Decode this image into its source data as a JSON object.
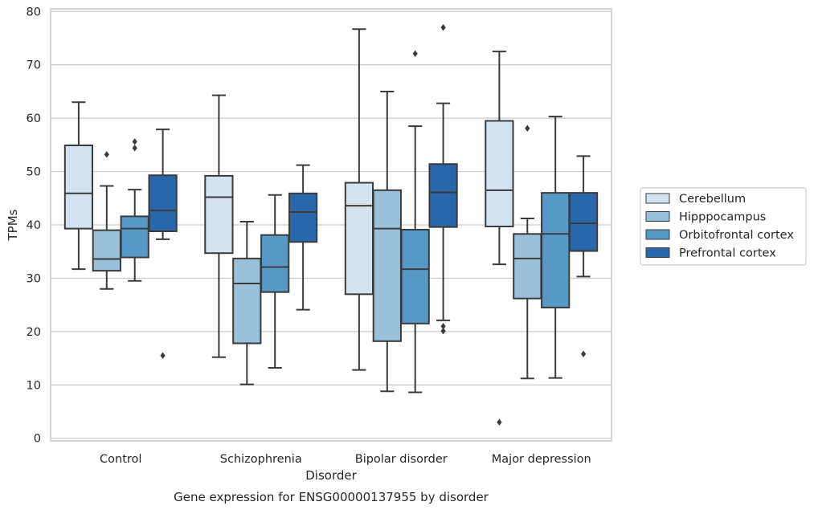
{
  "chart_data": {
    "type": "boxplot",
    "title": "",
    "caption": "Gene expression for ENSG00000137955 by disorder",
    "xlabel": "Disorder",
    "ylabel": "TPMs",
    "ylim": [
      -0.5,
      80.5
    ],
    "yticks": [
      0,
      10,
      20,
      30,
      40,
      50,
      60,
      70,
      80
    ],
    "grid": "horizontal",
    "legend_position": "right",
    "categories": [
      "Control",
      "Schizophrenia",
      "Bipolar disorder",
      "Major depression"
    ],
    "series": [
      {
        "name": "Cerebellum",
        "color": "#d3e3f2",
        "boxes": [
          {
            "whisker_low": 31.7,
            "q1": 39.3,
            "median": 45.9,
            "q3": 54.9,
            "whisker_high": 63.0,
            "outliers": []
          },
          {
            "whisker_low": 15.2,
            "q1": 34.7,
            "median": 45.2,
            "q3": 49.2,
            "whisker_high": 64.3,
            "outliers": []
          },
          {
            "whisker_low": 12.8,
            "q1": 27.0,
            "median": 43.6,
            "q3": 47.9,
            "whisker_high": 76.7,
            "outliers": []
          },
          {
            "whisker_low": 32.6,
            "q1": 39.7,
            "median": 46.5,
            "q3": 59.5,
            "whisker_high": 72.5,
            "outliers": [
              3.0
            ]
          }
        ]
      },
      {
        "name": "Hipppocampus",
        "color": "#9ac0da",
        "boxes": [
          {
            "whisker_low": 28.0,
            "q1": 31.4,
            "median": 33.6,
            "q3": 39.0,
            "whisker_high": 47.3,
            "outliers": [
              53.2
            ]
          },
          {
            "whisker_low": 10.1,
            "q1": 17.8,
            "median": 29.0,
            "q3": 33.7,
            "whisker_high": 40.6,
            "outliers": []
          },
          {
            "whisker_low": 8.8,
            "q1": 18.2,
            "median": 39.3,
            "q3": 46.5,
            "whisker_high": 65.0,
            "outliers": []
          },
          {
            "whisker_low": 11.2,
            "q1": 26.2,
            "median": 33.7,
            "q3": 38.3,
            "whisker_high": 41.2,
            "outliers": [
              58.1
            ]
          }
        ]
      },
      {
        "name": "Orbitofrontal cortex",
        "color": "#5799c6",
        "boxes": [
          {
            "whisker_low": 29.5,
            "q1": 33.9,
            "median": 39.3,
            "q3": 41.6,
            "whisker_high": 46.6,
            "outliers": [
              54.4,
              55.6
            ]
          },
          {
            "whisker_low": 13.2,
            "q1": 27.4,
            "median": 32.1,
            "q3": 38.1,
            "whisker_high": 45.6,
            "outliers": []
          },
          {
            "whisker_low": 8.6,
            "q1": 21.5,
            "median": 31.7,
            "q3": 39.1,
            "whisker_high": 58.5,
            "outliers": [
              72.1
            ]
          },
          {
            "whisker_low": 11.3,
            "q1": 24.5,
            "median": 38.3,
            "q3": 46.0,
            "whisker_high": 60.3,
            "outliers": []
          }
        ]
      },
      {
        "name": "Prefrontal cortex",
        "color": "#2867aa",
        "boxes": [
          {
            "whisker_low": 37.3,
            "q1": 38.8,
            "median": 42.7,
            "q3": 49.3,
            "whisker_high": 57.9,
            "outliers": [
              15.5
            ]
          },
          {
            "whisker_low": 24.1,
            "q1": 36.8,
            "median": 42.4,
            "q3": 45.9,
            "whisker_high": 51.2,
            "outliers": []
          },
          {
            "whisker_low": 22.1,
            "q1": 39.6,
            "median": 46.1,
            "q3": 51.4,
            "whisker_high": 62.8,
            "outliers": [
              77.0,
              21.0,
              20.1
            ]
          },
          {
            "whisker_low": 30.3,
            "q1": 35.1,
            "median": 40.3,
            "q3": 46.0,
            "whisker_high": 52.9,
            "outliers": [
              15.8
            ]
          }
        ]
      }
    ]
  }
}
